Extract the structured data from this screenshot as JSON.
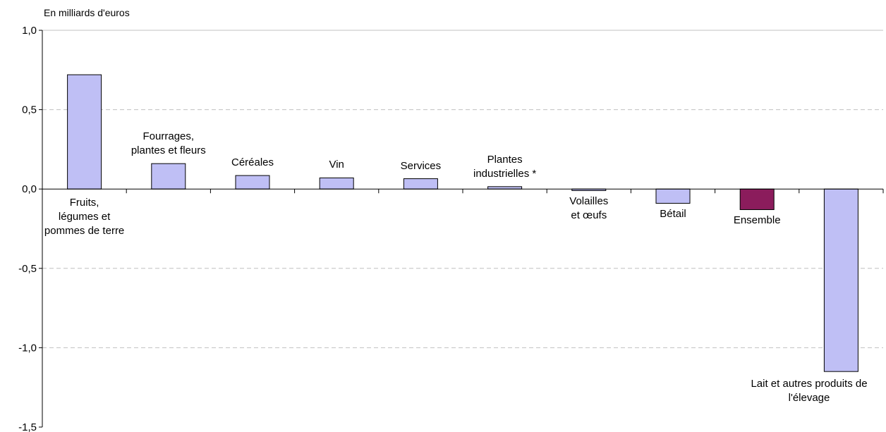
{
  "chart_data": {
    "type": "bar",
    "ylabel": "En milliards d'euros",
    "ylim": [
      -1.5,
      1.0
    ],
    "yticks": [
      "1,0",
      "0,5",
      "0,0",
      "-0,5",
      "-1,0",
      "-1,5"
    ],
    "ytick_values": [
      1.0,
      0.5,
      0.0,
      -0.5,
      -1.0,
      -1.5
    ],
    "grid": true,
    "categories": [
      "Fruits, légumes et pommes de terre",
      "Fourrages, plantes et fleurs",
      "Céréales",
      "Vin",
      "Services",
      "Plantes industrielles *",
      "Volailles et œufs",
      "Bétail",
      "Ensemble",
      "Lait et autres produits de l'élevage"
    ],
    "category_label_lines": [
      [
        "Fruits,",
        "légumes et",
        "pommes de terre"
      ],
      [
        "Fourrages,",
        "plantes et fleurs"
      ],
      [
        "Céréales"
      ],
      [
        "Vin"
      ],
      [
        "Services"
      ],
      [
        "Plantes",
        "industrielles *"
      ],
      [
        "Volailles",
        "et œufs"
      ],
      [
        "Bétail"
      ],
      [
        "Ensemble"
      ],
      [
        "Lait et autres produits de",
        "l'élevage"
      ]
    ],
    "values": [
      0.72,
      0.16,
      0.085,
      0.07,
      0.065,
      0.015,
      -0.01,
      -0.09,
      -0.13,
      -1.15
    ],
    "colors": {
      "bar": "#bfbff5",
      "highlight": "#8b1c5c",
      "axis": "#000000",
      "grid": "#c0c0c0"
    },
    "highlight_index": 8
  }
}
